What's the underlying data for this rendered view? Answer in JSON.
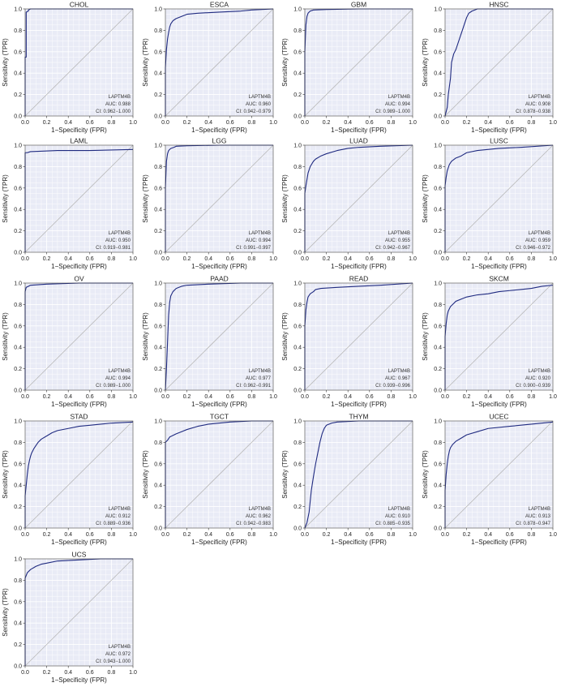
{
  "common": {
    "xlabel": "1−Specificity (FPR)",
    "ylabel": "Sensitivity (TPR)",
    "gene": "LAPTM4B",
    "xticks": [
      "0.0",
      "0.2",
      "0.4",
      "0.6",
      "0.8",
      "1.0"
    ],
    "yticks": [
      "0.0",
      "0.2",
      "0.4",
      "0.6",
      "0.8",
      "1.0"
    ],
    "colors": {
      "curve": "#1f2a80",
      "diagonal": "#b8b8b8",
      "panel_bg": "#e9ebf6",
      "grid": "#ffffff",
      "frame": "#444444"
    }
  },
  "chart_data": [
    {
      "type": "line",
      "title": "CHOL",
      "auc": "AUC: 0.988",
      "ci": "CI: 0.962−1.000",
      "xlim": [
        0,
        1
      ],
      "ylim": [
        0,
        1
      ],
      "x": [
        0,
        0,
        0.01,
        0.01,
        0.03,
        0.03,
        0.05,
        0.3,
        0.6,
        1
      ],
      "y": [
        0,
        0.55,
        0.55,
        0.97,
        0.98,
        0.99,
        1,
        1,
        1,
        1
      ]
    },
    {
      "type": "line",
      "title": "ESCA",
      "auc": "AUC: 0.960",
      "ci": "CI: 0.942−0.979",
      "xlim": [
        0,
        1
      ],
      "ylim": [
        0,
        1
      ],
      "x": [
        0,
        0,
        0.01,
        0.02,
        0.03,
        0.04,
        0.05,
        0.07,
        0.1,
        0.15,
        0.2,
        0.3,
        0.5,
        0.7,
        0.8,
        1
      ],
      "y": [
        0,
        0.45,
        0.62,
        0.72,
        0.78,
        0.83,
        0.86,
        0.89,
        0.91,
        0.93,
        0.95,
        0.96,
        0.97,
        0.98,
        0.99,
        1
      ]
    },
    {
      "type": "line",
      "title": "GBM",
      "auc": "AUC: 0.994",
      "ci": "CI: 0.989−1.000",
      "xlim": [
        0,
        1
      ],
      "ylim": [
        0,
        1
      ],
      "x": [
        0,
        0,
        0.01,
        0.02,
        0.03,
        0.05,
        0.08,
        0.2,
        0.5,
        1
      ],
      "y": [
        0,
        0.6,
        0.85,
        0.93,
        0.96,
        0.98,
        0.99,
        0.995,
        1,
        1
      ]
    },
    {
      "type": "line",
      "title": "HNSC",
      "auc": "AUC: 0.908",
      "ci": "CI: 0.878−0.938",
      "xlim": [
        0,
        1
      ],
      "ylim": [
        0,
        1
      ],
      "x": [
        0,
        0.02,
        0.03,
        0.05,
        0.06,
        0.08,
        0.1,
        0.12,
        0.14,
        0.16,
        0.18,
        0.2,
        0.22,
        0.25,
        0.3,
        0.5,
        1
      ],
      "y": [
        0,
        0.08,
        0.2,
        0.35,
        0.5,
        0.58,
        0.62,
        0.68,
        0.74,
        0.8,
        0.86,
        0.92,
        0.96,
        0.98,
        1,
        1,
        1
      ]
    },
    {
      "type": "line",
      "title": "LAML",
      "auc": "AUC: 0.950",
      "ci": "CI: 0.919−0.981",
      "xlim": [
        0,
        1
      ],
      "ylim": [
        0,
        1
      ],
      "x": [
        0,
        0,
        0.02,
        0.05,
        0.3,
        0.6,
        1
      ],
      "y": [
        0,
        0.93,
        0.93,
        0.94,
        0.95,
        0.95,
        0.96
      ]
    },
    {
      "type": "line",
      "title": "LGG",
      "auc": "AUC: 0.994",
      "ci": "CI: 0.991−0.997",
      "xlim": [
        0,
        1
      ],
      "ylim": [
        0,
        1
      ],
      "x": [
        0,
        0,
        0.01,
        0.02,
        0.03,
        0.05,
        0.08,
        0.1,
        0.2,
        0.5,
        1
      ],
      "y": [
        0,
        0.6,
        0.85,
        0.92,
        0.95,
        0.97,
        0.98,
        0.99,
        0.995,
        1,
        1
      ]
    },
    {
      "type": "line",
      "title": "LUAD",
      "auc": "AUC: 0.955",
      "ci": "CI: 0.942−0.967",
      "xlim": [
        0,
        1
      ],
      "ylim": [
        0,
        1
      ],
      "x": [
        0,
        0,
        0.01,
        0.02,
        0.03,
        0.05,
        0.08,
        0.1,
        0.15,
        0.2,
        0.3,
        0.4,
        0.5,
        0.7,
        1
      ],
      "y": [
        0,
        0.55,
        0.62,
        0.68,
        0.74,
        0.8,
        0.85,
        0.87,
        0.9,
        0.92,
        0.95,
        0.97,
        0.98,
        0.99,
        1
      ]
    },
    {
      "type": "line",
      "title": "LUSC",
      "auc": "AUC: 0.959",
      "ci": "CI: 0.946−0.972",
      "xlim": [
        0,
        1
      ],
      "ylim": [
        0,
        1
      ],
      "x": [
        0,
        0,
        0.01,
        0.02,
        0.04,
        0.06,
        0.1,
        0.15,
        0.2,
        0.3,
        0.5,
        0.7,
        1
      ],
      "y": [
        0,
        0.62,
        0.7,
        0.76,
        0.82,
        0.85,
        0.88,
        0.9,
        0.93,
        0.95,
        0.97,
        0.98,
        1
      ]
    },
    {
      "type": "line",
      "title": "OV",
      "auc": "AUC: 0.994",
      "ci": "CI: 0.989−1.000",
      "xlim": [
        0,
        1
      ],
      "ylim": [
        0,
        1
      ],
      "x": [
        0,
        0,
        0.01,
        0.03,
        0.05,
        0.2,
        0.5,
        1
      ],
      "y": [
        0,
        0.92,
        0.96,
        0.97,
        0.98,
        0.99,
        1,
        1
      ]
    },
    {
      "type": "line",
      "title": "PAAD",
      "auc": "AUC: 0.977",
      "ci": "CI: 0.962−0.991",
      "xlim": [
        0,
        1
      ],
      "ylim": [
        0,
        1
      ],
      "x": [
        0,
        0.01,
        0.02,
        0.03,
        0.04,
        0.05,
        0.07,
        0.1,
        0.15,
        0.2,
        0.4,
        0.7,
        1
      ],
      "y": [
        0,
        0.2,
        0.45,
        0.7,
        0.82,
        0.88,
        0.92,
        0.95,
        0.97,
        0.98,
        0.99,
        1,
        1
      ]
    },
    {
      "type": "line",
      "title": "READ",
      "auc": "AUC: 0.967",
      "ci": "CI: 0.939−0.996",
      "xlim": [
        0,
        1
      ],
      "ylim": [
        0,
        1
      ],
      "x": [
        0,
        0,
        0.01,
        0.02,
        0.03,
        0.05,
        0.08,
        0.1,
        0.15,
        0.3,
        0.5,
        0.7,
        1
      ],
      "y": [
        0,
        0.6,
        0.75,
        0.82,
        0.87,
        0.9,
        0.92,
        0.94,
        0.95,
        0.96,
        0.97,
        0.98,
        1
      ]
    },
    {
      "type": "line",
      "title": "SKCM",
      "auc": "AUC: 0.920",
      "ci": "CI: 0.900−0.939",
      "xlim": [
        0,
        1
      ],
      "ylim": [
        0,
        1
      ],
      "x": [
        0,
        0,
        0.01,
        0.02,
        0.03,
        0.05,
        0.08,
        0.1,
        0.15,
        0.2,
        0.3,
        0.4,
        0.5,
        0.6,
        0.7,
        0.8,
        0.9,
        1
      ],
      "y": [
        0,
        0.5,
        0.62,
        0.7,
        0.74,
        0.78,
        0.81,
        0.83,
        0.85,
        0.87,
        0.89,
        0.9,
        0.92,
        0.93,
        0.94,
        0.95,
        0.97,
        0.98
      ]
    },
    {
      "type": "line",
      "title": "STAD",
      "auc": "AUC: 0.912",
      "ci": "CI: 0.889−0.936",
      "xlim": [
        0,
        1
      ],
      "ylim": [
        0,
        1
      ],
      "x": [
        0,
        0,
        0.01,
        0.02,
        0.03,
        0.04,
        0.05,
        0.06,
        0.08,
        0.1,
        0.12,
        0.15,
        0.2,
        0.25,
        0.3,
        0.4,
        0.5,
        0.6,
        0.8,
        1
      ],
      "y": [
        0,
        0.3,
        0.4,
        0.5,
        0.58,
        0.63,
        0.67,
        0.7,
        0.74,
        0.77,
        0.8,
        0.83,
        0.86,
        0.89,
        0.91,
        0.93,
        0.95,
        0.96,
        0.98,
        0.99
      ]
    },
    {
      "type": "line",
      "title": "TGCT",
      "auc": "AUC: 0.962",
      "ci": "CI: 0.942−0.983",
      "xlim": [
        0,
        1
      ],
      "ylim": [
        0,
        1
      ],
      "x": [
        0,
        0,
        0.02,
        0.04,
        0.06,
        0.1,
        0.15,
        0.2,
        0.3,
        0.4,
        0.6,
        0.8,
        1
      ],
      "y": [
        0,
        0.8,
        0.82,
        0.85,
        0.86,
        0.88,
        0.9,
        0.92,
        0.95,
        0.97,
        0.99,
        1,
        1
      ]
    },
    {
      "type": "line",
      "title": "THYM",
      "auc": "AUC: 0.910",
      "ci": "CI: 0.885−0.935",
      "xlim": [
        0,
        1
      ],
      "ylim": [
        0,
        1
      ],
      "x": [
        0,
        0.02,
        0.04,
        0.05,
        0.06,
        0.08,
        0.1,
        0.12,
        0.14,
        0.16,
        0.18,
        0.2,
        0.25,
        0.3,
        0.5,
        0.7,
        1
      ],
      "y": [
        0,
        0.05,
        0.15,
        0.25,
        0.35,
        0.48,
        0.6,
        0.7,
        0.8,
        0.88,
        0.93,
        0.96,
        0.98,
        0.99,
        1,
        1,
        1
      ]
    },
    {
      "type": "line",
      "title": "UCEC",
      "auc": "AUC: 0.913",
      "ci": "CI: 0.878−0.947",
      "xlim": [
        0,
        1
      ],
      "ylim": [
        0,
        1
      ],
      "x": [
        0,
        0,
        0.01,
        0.02,
        0.03,
        0.04,
        0.05,
        0.07,
        0.1,
        0.15,
        0.2,
        0.3,
        0.4,
        0.6,
        0.8,
        1
      ],
      "y": [
        0,
        0.35,
        0.5,
        0.6,
        0.67,
        0.72,
        0.75,
        0.78,
        0.81,
        0.84,
        0.87,
        0.9,
        0.93,
        0.95,
        0.97,
        0.99
      ]
    },
    {
      "type": "line",
      "title": "UCS",
      "auc": "AUC: 0.972",
      "ci": "CI: 0.943−1.000",
      "xlim": [
        0,
        1
      ],
      "ylim": [
        0,
        1
      ],
      "x": [
        0,
        0,
        0.02,
        0.05,
        0.1,
        0.15,
        0.2,
        0.3,
        0.5,
        0.7,
        1
      ],
      "y": [
        0,
        0.82,
        0.87,
        0.9,
        0.93,
        0.95,
        0.96,
        0.98,
        0.99,
        1,
        1
      ]
    }
  ]
}
